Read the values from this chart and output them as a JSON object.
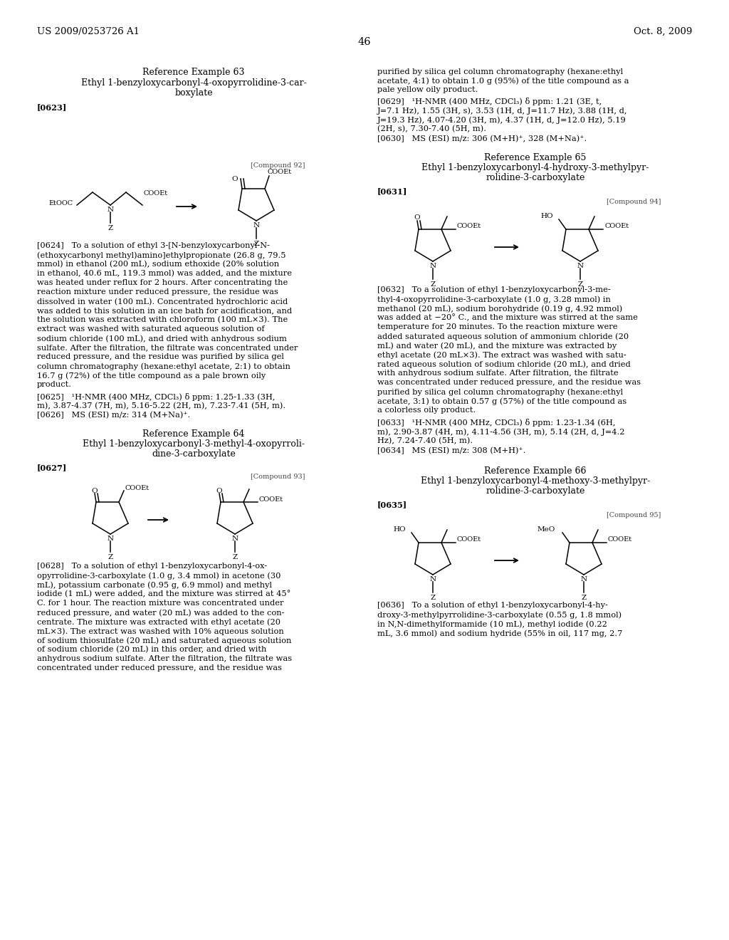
{
  "bg_color": "#ffffff",
  "header_left": "US 2009/0253726 A1",
  "header_right": "Oct. 8, 2009",
  "page_number": "46",
  "ref_ex63_title": "Reference Example 63",
  "ref_ex63_sub1": "Ethyl 1-benzyloxycarbonyl-4-oxopyrrolidine-3-car-",
  "ref_ex63_sub2": "boxylate",
  "ref_ex63_tag": "[0623]",
  "compound92_label": "[Compound 92]",
  "ref_ex64_title": "Reference Example 64",
  "ref_ex64_sub1": "Ethyl 1-benzyloxycarbonyl-3-methyl-4-oxopyrroli-",
  "ref_ex64_sub2": "dine-3-carboxylate",
  "ref_ex64_tag": "[0627]",
  "compound93_label": "[Compound 93]",
  "ref_ex65_title": "Reference Example 65",
  "ref_ex65_sub1": "Ethyl 1-benzyloxycarbonyl-4-hydroxy-3-methylpyr-",
  "ref_ex65_sub2": "rolidine-3-carboxylate",
  "ref_ex65_tag": "[0631]",
  "compound94_label": "[Compound 94]",
  "ref_ex66_title": "Reference Example 66",
  "ref_ex66_sub1": "Ethyl 1-benzyloxycarbonyl-4-methoxy-3-methylpyr-",
  "ref_ex66_sub2": "rolidine-3-carboxylate",
  "ref_ex66_tag": "[0635]",
  "compound95_label": "[Compound 95]",
  "p0624_lines": [
    "[0624]   To a solution of ethyl 3-[N-benzyloxycarbonyl-N-",
    "(ethoxycarbonyl methyl)amino]ethylpropionate (26.8 g, 79.5",
    "mmol) in ethanol (200 mL), sodium ethoxide (20% solution",
    "in ethanol, 40.6 mL, 119.3 mmol) was added, and the mixture",
    "was heated under reflux for 2 hours. After concentrating the",
    "reaction mixture under reduced pressure, the residue was",
    "dissolved in water (100 mL). Concentrated hydrochloric acid",
    "was added to this solution in an ice bath for acidification, and",
    "the solution was extracted with chloroform (100 mL×3). The",
    "extract was washed with saturated aqueous solution of",
    "sodium chloride (100 mL), and dried with anhydrous sodium",
    "sulfate. After the filtration, the filtrate was concentrated under",
    "reduced pressure, and the residue was purified by silica gel",
    "column chromatography (hexane:ethyl acetate, 2:1) to obtain",
    "16.7 g (72%) of the title compound as a pale brown oily",
    "product."
  ],
  "p0625_lines": [
    "[0625]   ¹H-NMR (400 MHz, CDCl₃) δ ppm: 1.25-1.33 (3H,",
    "m), 3.87-4.37 (7H, m), 5.16-5.22 (2H, m), 7.23-7.41 (5H, m)."
  ],
  "p0626_lines": [
    "[0626]   MS (ESI) m/z: 314 (M+Na)⁺."
  ],
  "p0628_lines": [
    "[0628]   To a solution of ethyl 1-benzyloxycarbonyl-4-ox-",
    "opyrrolidine-3-carboxylate (1.0 g, 3.4 mmol) in acetone (30",
    "mL), potassium carbonate (0.95 g, 6.9 mmol) and methyl",
    "iodide (1 mL) were added, and the mixture was stirred at 45°",
    "C. for 1 hour. The reaction mixture was concentrated under",
    "reduced pressure, and water (20 mL) was added to the con-",
    "centrate. The mixture was extracted with ethyl acetate (20",
    "mL×3). The extract was washed with 10% aqueous solution",
    "of sodium thiosulfate (20 mL) and saturated aqueous solution",
    "of sodium chloride (20 mL) in this order, and dried with",
    "anhydrous sodium sulfate. After the filtration, the filtrate was",
    "concentrated under reduced pressure, and the residue was"
  ],
  "p0629_pre_lines": [
    "purified by silica gel column chromatography (hexane:ethyl",
    "acetate, 4:1) to obtain 1.0 g (95%) of the title compound as a",
    "pale yellow oily product."
  ],
  "p0629_lines": [
    "[0629]   ¹H-NMR (400 MHz, CDCl₃) δ ppm: 1.21 (3E, t,",
    "J=7.1 Hz), 1.55 (3H, s), 3.53 (1H, d, J=11.7 Hz), 3.88 (1H, d,",
    "J=19.3 Hz), 4.07-4.20 (3H, m), 4.37 (1H, d, J=12.0 Hz), 5.19",
    "(2H, s), 7.30-7.40 (5H, m)."
  ],
  "p0630_lines": [
    "[0630]   MS (ESI) m/z: 306 (M+H)⁺, 328 (M+Na)⁺."
  ],
  "p0632_lines": [
    "[0632]   To a solution of ethyl 1-benzyloxycarbonyl-3-me-",
    "thyl-4-oxopyrrolidine-3-carboxylate (1.0 g, 3.28 mmol) in",
    "methanol (20 mL), sodium borohydride (0.19 g, 4.92 mmol)",
    "was added at −20° C., and the mixture was stirred at the same",
    "temperature for 20 minutes. To the reaction mixture were",
    "added saturated aqueous solution of ammonium chloride (20",
    "mL) and water (20 mL), and the mixture was extracted by",
    "ethyl acetate (20 mL×3). The extract was washed with satu-",
    "rated aqueous solution of sodium chloride (20 mL), and dried",
    "with anhydrous sodium sulfate. After filtration, the filtrate",
    "was concentrated under reduced pressure, and the residue was",
    "purified by silica gel column chromatography (hexane:ethyl",
    "acetate, 3:1) to obtain 0.57 g (57%) of the title compound as",
    "a colorless oily product."
  ],
  "p0633_lines": [
    "[0633]   ¹H-NMR (400 MHz, CDCl₃) δ ppm: 1.23-1.34 (6H,",
    "m), 2.90-3.87 (4H, m), 4.11-4.56 (3H, m), 5.14 (2H, d, J=4.2",
    "Hz), 7.24-7.40 (5H, m)."
  ],
  "p0634_lines": [
    "[0634]   MS (ESI) m/z: 308 (M+H)⁺."
  ],
  "p0636_lines": [
    "[0636]   To a solution of ethyl 1-benzyloxycarbonyl-4-hy-",
    "droxy-3-methylpyrrolidine-3-carboxylate (0.55 g, 1.8 mmol)",
    "in N,N-dimethylformamide (10 mL), methyl iodide (0.22",
    "mL, 3.6 mmol) and sodium hydride (55% in oil, 117 mg, 2.7"
  ]
}
